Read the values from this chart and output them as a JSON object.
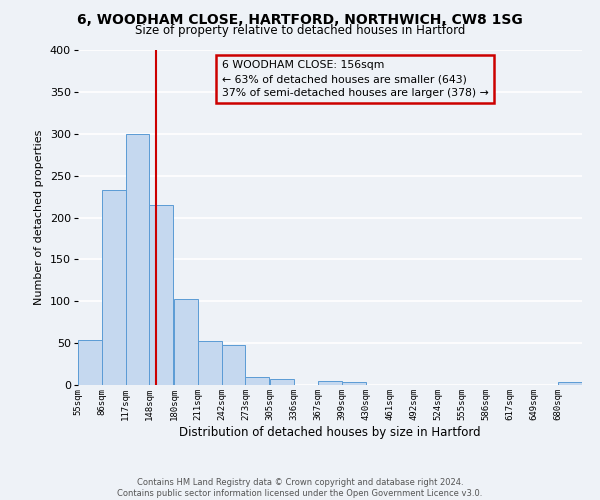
{
  "title_line1": "6, WOODHAM CLOSE, HARTFORD, NORTHWICH, CW8 1SG",
  "title_line2": "Size of property relative to detached houses in Hartford",
  "xlabel": "Distribution of detached houses by size in Hartford",
  "ylabel": "Number of detached properties",
  "bin_labels": [
    "55sqm",
    "86sqm",
    "117sqm",
    "148sqm",
    "180sqm",
    "211sqm",
    "242sqm",
    "273sqm",
    "305sqm",
    "336sqm",
    "367sqm",
    "399sqm",
    "430sqm",
    "461sqm",
    "492sqm",
    "524sqm",
    "555sqm",
    "586sqm",
    "617sqm",
    "649sqm",
    "680sqm"
  ],
  "bin_edges": [
    55,
    86,
    117,
    148,
    180,
    211,
    242,
    273,
    305,
    336,
    367,
    399,
    430,
    461,
    492,
    524,
    555,
    586,
    617,
    649,
    680
  ],
  "bar_heights": [
    54,
    233,
    300,
    215,
    103,
    52,
    48,
    10,
    7,
    0,
    5,
    3,
    0,
    0,
    0,
    0,
    0,
    0,
    0,
    0,
    3
  ],
  "bar_color": "#c5d8ef",
  "bar_edge_color": "#5b9bd5",
  "vline_x": 156,
  "vline_color": "#cc0000",
  "ylim": [
    0,
    400
  ],
  "yticks": [
    0,
    50,
    100,
    150,
    200,
    250,
    300,
    350,
    400
  ],
  "annotation_title": "6 WOODHAM CLOSE: 156sqm",
  "annotation_line1": "← 63% of detached houses are smaller (643)",
  "annotation_line2": "37% of semi-detached houses are larger (378) →",
  "annotation_box_color": "#cc0000",
  "footer_line1": "Contains HM Land Registry data © Crown copyright and database right 2024.",
  "footer_line2": "Contains public sector information licensed under the Open Government Licence v3.0.",
  "background_color": "#eef2f7",
  "grid_color": "#ffffff"
}
